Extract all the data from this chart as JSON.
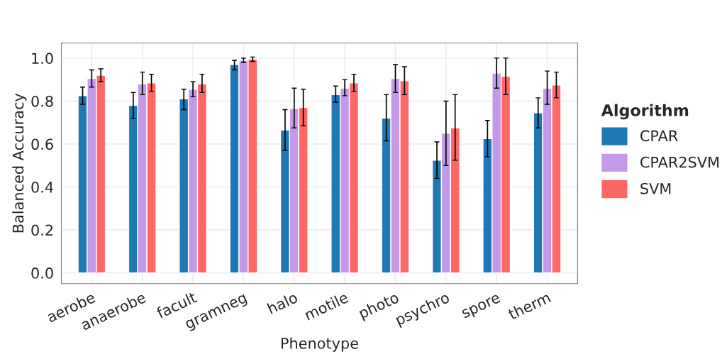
{
  "chart_data": {
    "type": "bar",
    "xlabel": "Phenotype",
    "ylabel": "Balanced Accuracy",
    "legend_title": "Algorithm",
    "legend": "right",
    "grid": true,
    "categories": [
      "aerobe",
      "anaerobe",
      "facult",
      "gramneg",
      "halo",
      "motile",
      "photo",
      "psychro",
      "spore",
      "therm"
    ],
    "series": [
      {
        "name": "CPAR",
        "color": "#1f78b4",
        "values": [
          0.825,
          0.78,
          0.81,
          0.97,
          0.665,
          0.83,
          0.72,
          0.525,
          0.625,
          0.745
        ],
        "errors": [
          [
            0.785,
            0.865
          ],
          [
            0.72,
            0.84
          ],
          [
            0.76,
            0.855
          ],
          [
            0.945,
            0.99
          ],
          [
            0.57,
            0.76
          ],
          [
            0.795,
            0.87
          ],
          [
            0.615,
            0.83
          ],
          [
            0.44,
            0.61
          ],
          [
            0.54,
            0.71
          ],
          [
            0.675,
            0.815
          ]
        ]
      },
      {
        "name": "CPAR2SVM",
        "color": "#c399e8",
        "values": [
          0.905,
          0.88,
          0.855,
          0.99,
          0.765,
          0.86,
          0.905,
          0.65,
          0.93,
          0.86
        ],
        "errors": [
          [
            0.865,
            0.945
          ],
          [
            0.83,
            0.935
          ],
          [
            0.82,
            0.89
          ],
          [
            0.98,
            1.0
          ],
          [
            0.675,
            0.86
          ],
          [
            0.825,
            0.9
          ],
          [
            0.84,
            0.97
          ],
          [
            0.5,
            0.8
          ],
          [
            0.86,
            1.0
          ],
          [
            0.785,
            0.94
          ]
        ]
      },
      {
        "name": "SVM",
        "color": "#ff6666",
        "values": [
          0.92,
          0.885,
          0.88,
          0.995,
          0.77,
          0.885,
          0.895,
          0.675,
          0.915,
          0.875
        ],
        "errors": [
          [
            0.89,
            0.95
          ],
          [
            0.845,
            0.925
          ],
          [
            0.84,
            0.925
          ],
          [
            0.985,
            1.005
          ],
          [
            0.685,
            0.855
          ],
          [
            0.845,
            0.925
          ],
          [
            0.83,
            0.96
          ],
          [
            0.525,
            0.83
          ],
          [
            0.83,
            1.0
          ],
          [
            0.815,
            0.935
          ]
        ]
      }
    ],
    "ylim": [
      -0.05,
      1.07
    ],
    "yticks": [
      {
        "value": 0,
        "label": "0.0"
      },
      0.2,
      0.4,
      0.6,
      0.8,
      {
        "value": 1,
        "label": "1.0"
      }
    ]
  }
}
